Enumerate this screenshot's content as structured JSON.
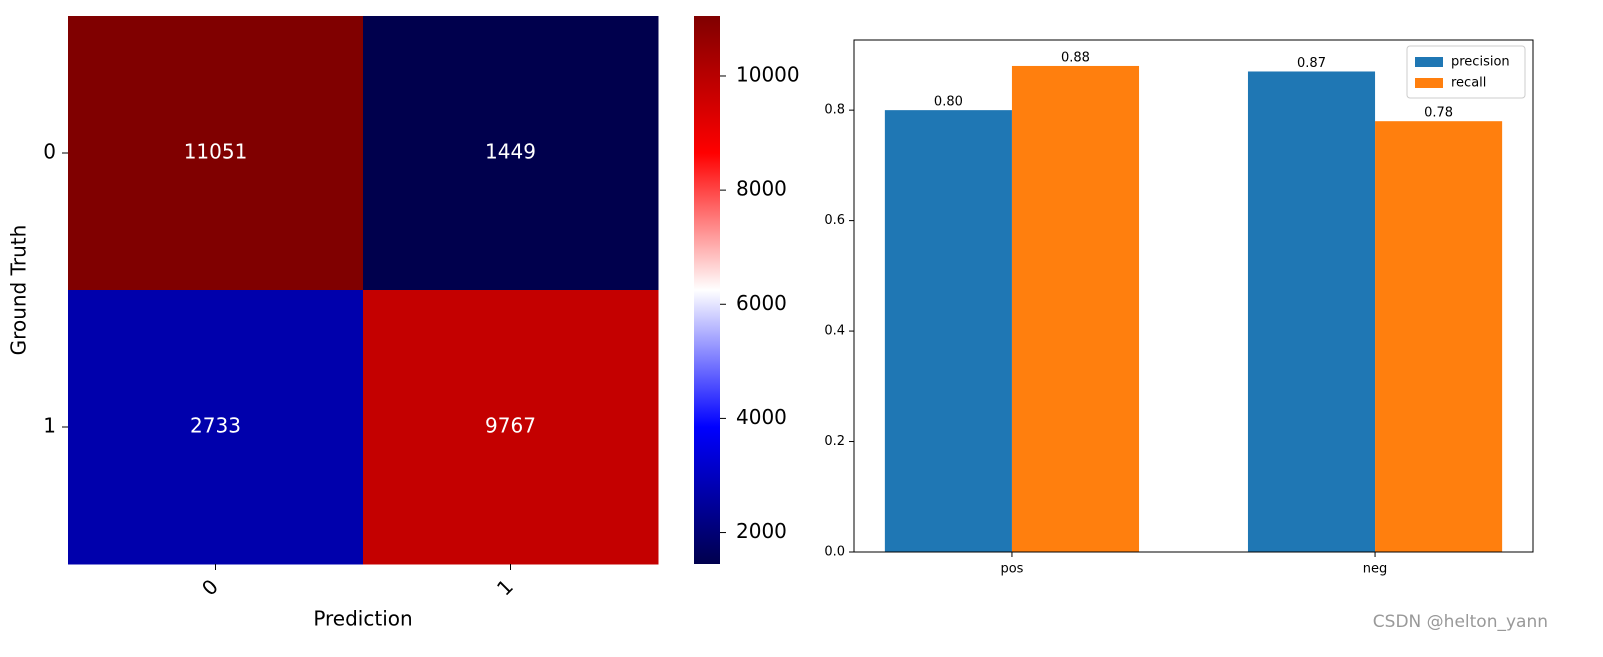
{
  "chart_data": [
    {
      "type": "heatmap",
      "x_label": "Prediction",
      "y_label": "Ground Truth",
      "x_categories": [
        "0",
        "1"
      ],
      "y_categories": [
        "0",
        "1"
      ],
      "values": [
        [
          11051,
          1449
        ],
        [
          2733,
          9767
        ]
      ],
      "colormap": "seismic",
      "clim": [
        1449,
        11051
      ],
      "cticks": [
        2000,
        4000,
        6000,
        8000,
        10000
      ]
    },
    {
      "type": "bar",
      "categories": [
        "pos",
        "neg"
      ],
      "series": [
        {
          "name": "precision",
          "color": "#1f77b4",
          "values": [
            0.8,
            0.87
          ],
          "value_labels": [
            "0.80",
            "0.87"
          ]
        },
        {
          "name": "recall",
          "color": "#ff7f0e",
          "values": [
            0.88,
            0.78
          ],
          "value_labels": [
            "0.88",
            "0.78"
          ]
        }
      ],
      "ylim": [
        0,
        0.927
      ],
      "yticks": [
        {
          "value": 0,
          "label": "0.0"
        },
        0.2,
        0.4,
        0.6,
        0.8
      ],
      "legend": "upper right"
    }
  ],
  "watermark": "CSDN @helton_yann"
}
